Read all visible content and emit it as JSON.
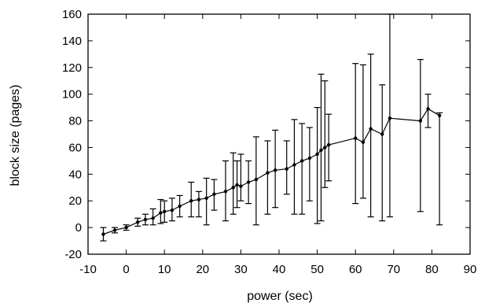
{
  "chart_data": {
    "type": "scatter",
    "title": "",
    "xlabel": "power (sec)",
    "ylabel": "block size (pages)",
    "xlim": [
      -10,
      90
    ],
    "ylim": [
      -20,
      160
    ],
    "xticks": [
      -10,
      0,
      10,
      20,
      30,
      40,
      50,
      60,
      70,
      80,
      90
    ],
    "yticks": [
      -20,
      0,
      20,
      40,
      60,
      80,
      100,
      120,
      140,
      160
    ],
    "grid": false,
    "legend": "none",
    "series": [
      {
        "line": true,
        "error_bars": true,
        "color": "#000000",
        "points": [
          {
            "x": -6,
            "y": -5,
            "lo": -10,
            "hi": 0
          },
          {
            "x": -3,
            "y": -2,
            "lo": -4,
            "hi": 0
          },
          {
            "x": 0,
            "y": 0,
            "lo": -2,
            "hi": 2
          },
          {
            "x": 3,
            "y": 4,
            "lo": 1,
            "hi": 7
          },
          {
            "x": 5,
            "y": 6,
            "lo": 2,
            "hi": 10
          },
          {
            "x": 7,
            "y": 7,
            "lo": 2,
            "hi": 14
          },
          {
            "x": 9,
            "y": 11,
            "lo": 3,
            "hi": 21
          },
          {
            "x": 10,
            "y": 12,
            "lo": 4,
            "hi": 20
          },
          {
            "x": 12,
            "y": 13,
            "lo": 5,
            "hi": 22
          },
          {
            "x": 14,
            "y": 16,
            "lo": 8,
            "hi": 24
          },
          {
            "x": 17,
            "y": 20,
            "lo": 8,
            "hi": 34
          },
          {
            "x": 19,
            "y": 21,
            "lo": 8,
            "hi": 27
          },
          {
            "x": 21,
            "y": 22,
            "lo": 2,
            "hi": 37
          },
          {
            "x": 23,
            "y": 25,
            "lo": 13,
            "hi": 36
          },
          {
            "x": 26,
            "y": 27,
            "lo": 5,
            "hi": 50
          },
          {
            "x": 28,
            "y": 30,
            "lo": 10,
            "hi": 56
          },
          {
            "x": 29,
            "y": 32,
            "lo": 15,
            "hi": 50
          },
          {
            "x": 30,
            "y": 31,
            "lo": 20,
            "hi": 55
          },
          {
            "x": 32,
            "y": 34,
            "lo": 18,
            "hi": 50
          },
          {
            "x": 34,
            "y": 36,
            "lo": 2,
            "hi": 68
          },
          {
            "x": 37,
            "y": 41,
            "lo": 10,
            "hi": 65
          },
          {
            "x": 39,
            "y": 43,
            "lo": 15,
            "hi": 73
          },
          {
            "x": 42,
            "y": 44,
            "lo": 25,
            "hi": 65
          },
          {
            "x": 44,
            "y": 47,
            "lo": 10,
            "hi": 81
          },
          {
            "x": 46,
            "y": 50,
            "lo": 10,
            "hi": 78
          },
          {
            "x": 48,
            "y": 52,
            "lo": 20,
            "hi": 75
          },
          {
            "x": 50,
            "y": 55,
            "lo": 3,
            "hi": 90
          },
          {
            "x": 51,
            "y": 58,
            "lo": 5,
            "hi": 115
          },
          {
            "x": 52,
            "y": 60,
            "lo": 30,
            "hi": 110
          },
          {
            "x": 53,
            "y": 62,
            "lo": 35,
            "hi": 85
          },
          {
            "x": 60,
            "y": 67,
            "lo": 18,
            "hi": 123
          },
          {
            "x": 62,
            "y": 64,
            "lo": 22,
            "hi": 122
          },
          {
            "x": 64,
            "y": 74,
            "lo": 8,
            "hi": 130
          },
          {
            "x": 67,
            "y": 70,
            "lo": 5,
            "hi": 107
          },
          {
            "x": 69,
            "y": 82,
            "lo": 8,
            "hi": 160
          },
          {
            "x": 77,
            "y": 80,
            "lo": 12,
            "hi": 126
          },
          {
            "x": 79,
            "y": 89,
            "lo": 75,
            "hi": 100
          },
          {
            "x": 82,
            "y": 84,
            "lo": 2,
            "hi": 86
          }
        ]
      }
    ]
  }
}
